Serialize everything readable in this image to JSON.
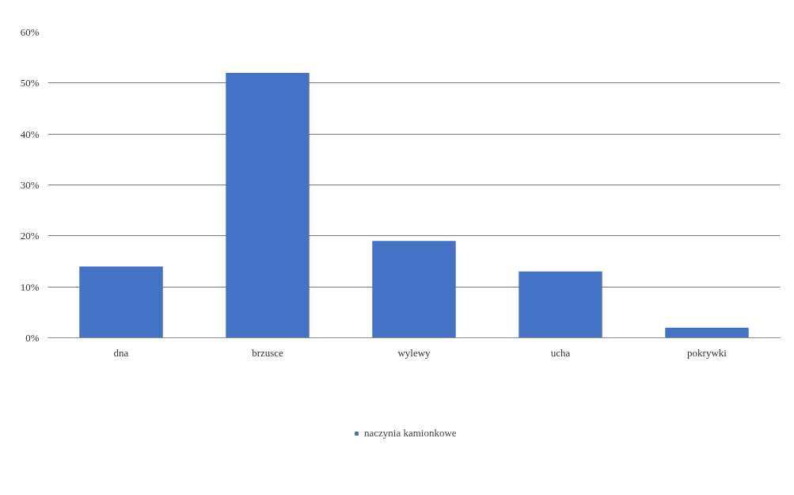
{
  "chart_data": {
    "type": "bar",
    "categories": [
      "dna",
      "brzusce",
      "wylewy",
      "ucha",
      "pokrywki"
    ],
    "series": [
      {
        "name": "naczynia kamionkowe",
        "color": "#4472c4",
        "values": [
          14,
          52,
          19,
          13,
          2
        ]
      }
    ],
    "ylim": [
      0,
      60
    ],
    "yticks": [
      {
        "value": 0,
        "label": "0%"
      },
      {
        "value": 10,
        "label": "10%"
      },
      {
        "value": 20,
        "label": "20%"
      },
      {
        "value": 30,
        "label": "30%"
      },
      {
        "value": 40,
        "label": "40%"
      },
      {
        "value": 50,
        "label": "50%"
      },
      {
        "value": 60,
        "label": "60%"
      }
    ],
    "grid": "y",
    "legend": "bottom"
  }
}
